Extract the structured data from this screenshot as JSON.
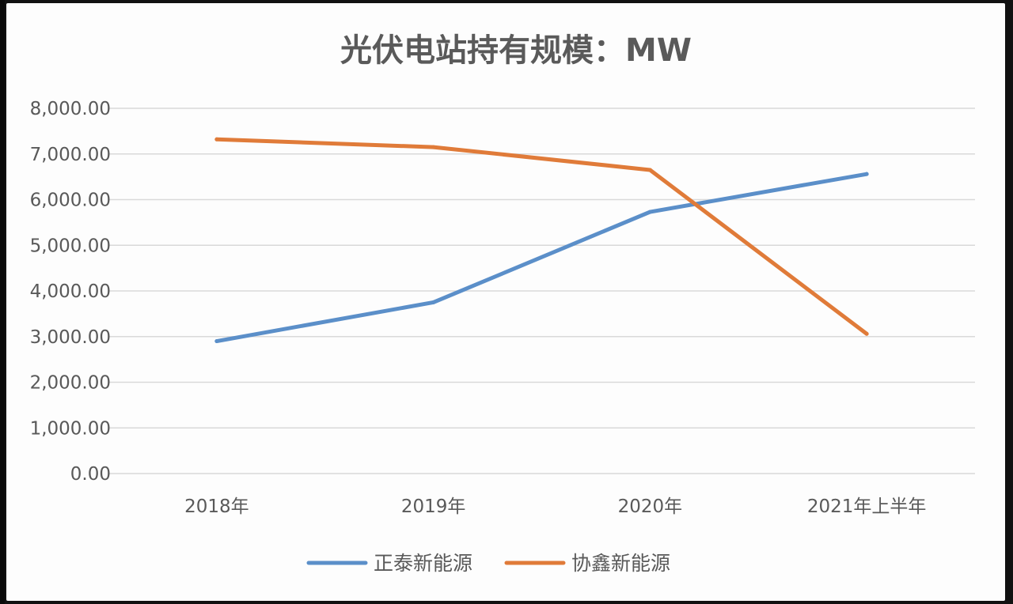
{
  "chart_data": {
    "type": "line",
    "title": "光伏电站持有规模：MW",
    "categories": [
      "2018年",
      "2019年",
      "2020年",
      "2021年上半年"
    ],
    "yticks": [
      "0.00",
      "1,000.00",
      "2,000.00",
      "3,000.00",
      "4,000.00",
      "5,000.00",
      "6,000.00",
      "7,000.00",
      "8,000.00"
    ],
    "ylim": [
      0,
      8000
    ],
    "grid": true,
    "legend_position": "bottom",
    "series": [
      {
        "name": "正泰新能源",
        "color": "#5b8fc9",
        "values": [
          2900,
          3750,
          5730,
          6560
        ]
      },
      {
        "name": "协鑫新能源",
        "color": "#e07b39",
        "values": [
          7320,
          7150,
          6650,
          3060
        ]
      }
    ]
  }
}
